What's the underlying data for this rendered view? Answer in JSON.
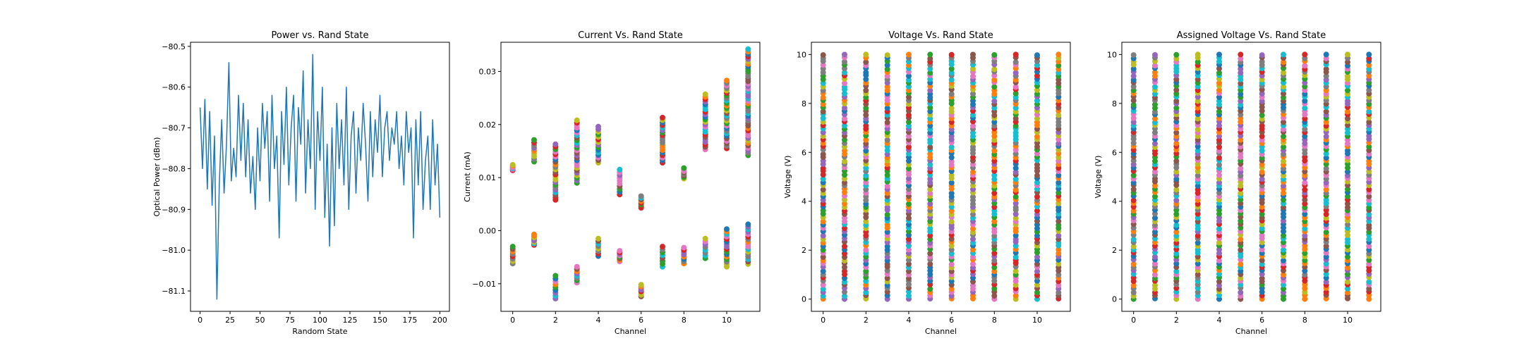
{
  "figure": {
    "palette": [
      "#1f77b4",
      "#ff7f0e",
      "#2ca02c",
      "#d62728",
      "#9467bd",
      "#8c564b",
      "#e377c2",
      "#7f7f7f",
      "#bcbd22",
      "#17becf"
    ],
    "line_color": "#1f77b4"
  },
  "chart_data": [
    {
      "type": "line",
      "title": "Power vs. Rand State",
      "xlabel": "Random State",
      "ylabel": "Optical Power (dBm)",
      "xlim": [
        -8,
        208
      ],
      "ylim": [
        -81.15,
        -80.49
      ],
      "xticks": [
        0,
        25,
        50,
        75,
        100,
        125,
        150,
        175,
        200
      ],
      "yticks": [
        -81.1,
        -81.0,
        -80.9,
        -80.8,
        -80.7,
        -80.6,
        -80.5
      ],
      "ytick_labels": [
        "−81.1",
        "−81.0",
        "−80.9",
        "−80.8",
        "−80.7",
        "−80.6",
        "−80.5"
      ],
      "grid": false,
      "series": [
        {
          "x": [
            0,
            2,
            4,
            6,
            8,
            10,
            12,
            14,
            16,
            18,
            20,
            22,
            24,
            26,
            28,
            30,
            32,
            34,
            36,
            38,
            40,
            42,
            44,
            46,
            48,
            50,
            52,
            54,
            56,
            58,
            60,
            62,
            64,
            66,
            68,
            70,
            72,
            74,
            76,
            78,
            80,
            82,
            84,
            86,
            88,
            90,
            92,
            94,
            96,
            98,
            100,
            102,
            104,
            106,
            108,
            110,
            112,
            114,
            116,
            118,
            120,
            122,
            124,
            126,
            128,
            130,
            132,
            134,
            136,
            138,
            140,
            142,
            144,
            146,
            148,
            150,
            152,
            154,
            156,
            158,
            160,
            162,
            164,
            166,
            168,
            170,
            172,
            174,
            176,
            178,
            180,
            182,
            184,
            186,
            188,
            190,
            192,
            194,
            196,
            198,
            200
          ],
          "values": [
            -80.65,
            -80.8,
            -80.63,
            -80.85,
            -80.66,
            -80.89,
            -80.72,
            -81.12,
            -80.84,
            -80.68,
            -80.86,
            -80.74,
            -80.54,
            -80.83,
            -80.75,
            -80.82,
            -80.62,
            -80.78,
            -80.64,
            -80.82,
            -80.68,
            -80.86,
            -80.77,
            -80.9,
            -80.7,
            -80.83,
            -80.64,
            -80.75,
            -80.66,
            -80.88,
            -80.62,
            -80.8,
            -80.72,
            -80.97,
            -80.66,
            -80.79,
            -80.6,
            -80.84,
            -80.7,
            -80.62,
            -80.88,
            -80.65,
            -80.74,
            -80.56,
            -80.86,
            -80.68,
            -80.8,
            -80.52,
            -80.9,
            -80.66,
            -80.78,
            -80.6,
            -80.92,
            -80.74,
            -80.99,
            -80.7,
            -80.94,
            -80.64,
            -80.8,
            -80.68,
            -80.84,
            -80.6,
            -80.9,
            -80.72,
            -80.66,
            -80.86,
            -80.7,
            -80.78,
            -80.64,
            -80.74,
            -80.88,
            -80.66,
            -80.82,
            -80.68,
            -80.76,
            -80.62,
            -80.82,
            -80.7,
            -80.66,
            -80.78,
            -80.7,
            -80.74,
            -80.66,
            -80.8,
            -80.72,
            -80.84,
            -80.66,
            -80.76,
            -80.7,
            -80.97,
            -80.68,
            -80.84,
            -80.66,
            -80.9,
            -80.78,
            -80.72,
            -80.9,
            -80.68,
            -80.84,
            -80.74,
            -80.92
          ]
        }
      ]
    },
    {
      "type": "scatter",
      "title": "Current Vs. Rand State",
      "xlabel": "Channel",
      "ylabel": "Current (mA)",
      "xlim": [
        -0.55,
        11.55
      ],
      "ylim": [
        -0.0152,
        0.0355
      ],
      "xticks": [
        0,
        2,
        4,
        6,
        8,
        10
      ],
      "yticks": [
        -0.01,
        0.0,
        0.01,
        0.02,
        0.03
      ],
      "ytick_labels": [
        "−0.01",
        "0.00",
        "0.01",
        "0.02",
        "0.03"
      ],
      "grid": false,
      "groups": [
        {
          "channel": 0,
          "bands": [
            [
              0.0113,
              0.0124
            ],
            [
              -0.0062,
              -0.003
            ]
          ]
        },
        {
          "channel": 1,
          "bands": [
            [
              0.013,
              0.0171
            ],
            [
              -0.0027,
              -0.0007
            ]
          ]
        },
        {
          "channel": 2,
          "bands": [
            [
              0.0058,
              0.0163
            ],
            [
              -0.0128,
              -0.0085
            ]
          ]
        },
        {
          "channel": 3,
          "bands": [
            [
              0.009,
              0.0208
            ],
            [
              -0.0098,
              -0.0068
            ]
          ]
        },
        {
          "channel": 4,
          "bands": [
            [
              0.0128,
              0.0196
            ],
            [
              -0.0048,
              -0.0015
            ]
          ]
        },
        {
          "channel": 5,
          "bands": [
            [
              0.0068,
              0.0115
            ],
            [
              -0.0058,
              -0.0038
            ]
          ]
        },
        {
          "channel": 6,
          "bands": [
            [
              0.0043,
              0.0065
            ],
            [
              -0.0124,
              -0.0102
            ]
          ]
        },
        {
          "channel": 7,
          "bands": [
            [
              0.0128,
              0.0213
            ],
            [
              -0.0068,
              -0.003
            ]
          ]
        },
        {
          "channel": 8,
          "bands": [
            [
              0.0098,
              0.0118
            ],
            [
              -0.0062,
              -0.0032
            ]
          ]
        },
        {
          "channel": 9,
          "bands": [
            [
              0.0153,
              0.0257
            ],
            [
              -0.0052,
              -0.0015
            ]
          ]
        },
        {
          "channel": 10,
          "bands": [
            [
              0.0155,
              0.0283
            ],
            [
              -0.0068,
              0.0003
            ]
          ]
        },
        {
          "channel": 11,
          "bands": [
            [
              0.0142,
              0.0342
            ],
            [
              -0.0063,
              0.0012
            ]
          ]
        }
      ]
    },
    {
      "type": "scatter",
      "title": "Voltage Vs. Rand State",
      "xlabel": "Channel",
      "ylabel": "Voltage (V)",
      "xlim": [
        -0.55,
        11.55
      ],
      "ylim": [
        -0.5,
        10.5
      ],
      "xticks": [
        0,
        2,
        4,
        6,
        8,
        10
      ],
      "yticks": [
        0,
        2,
        4,
        6,
        8,
        10
      ],
      "ytick_labels": [
        "0",
        "2",
        "4",
        "6",
        "8",
        "10"
      ],
      "grid": false,
      "channels": [
        0,
        1,
        2,
        3,
        4,
        5,
        6,
        7,
        8,
        9,
        10,
        11
      ],
      "value_range": [
        0,
        10
      ]
    },
    {
      "type": "scatter",
      "title": "Assigned Voltage Vs. Rand State",
      "xlabel": "Channel",
      "ylabel": "Voltage (V)",
      "xlim": [
        -0.55,
        11.55
      ],
      "ylim": [
        -0.5,
        10.5
      ],
      "xticks": [
        0,
        2,
        4,
        6,
        8,
        10
      ],
      "yticks": [
        0,
        2,
        4,
        6,
        8,
        10
      ],
      "ytick_labels": [
        "0",
        "2",
        "4",
        "6",
        "8",
        "10"
      ],
      "grid": false,
      "channels": [
        0,
        1,
        2,
        3,
        4,
        5,
        6,
        7,
        8,
        9,
        10,
        11
      ],
      "value_range": [
        0,
        10
      ]
    }
  ]
}
